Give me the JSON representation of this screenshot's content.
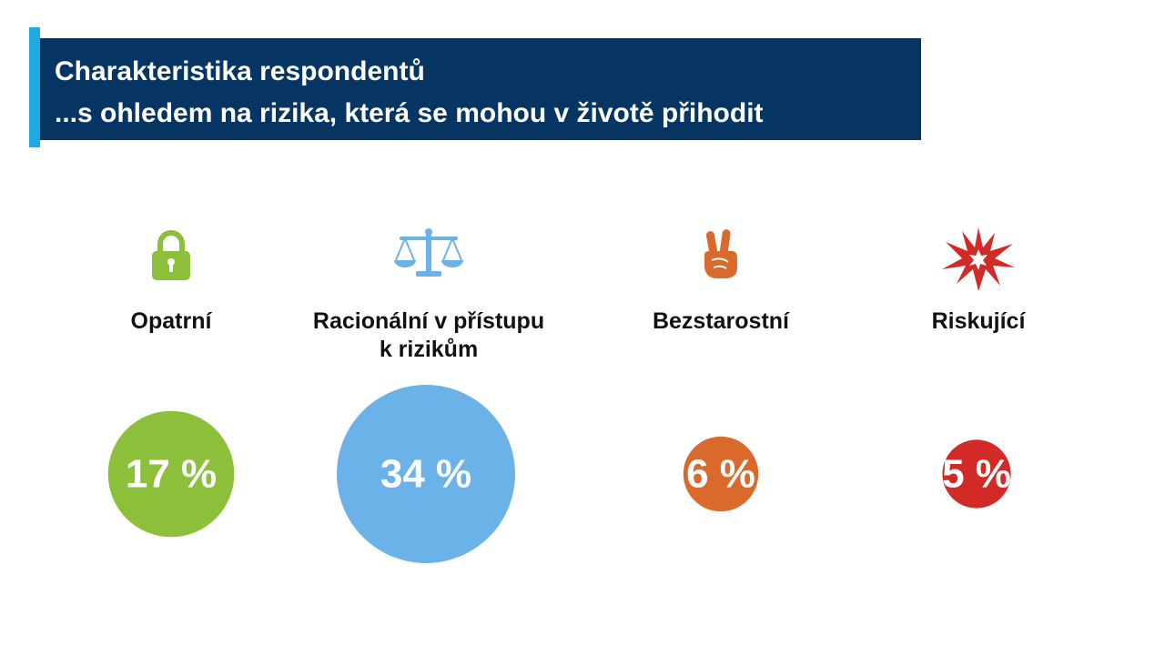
{
  "title": {
    "line1": "Charakteristika respondentů",
    "line2": "...s ohledem na rizika, která se mohou v životě přihodit"
  },
  "chart_data": {
    "type": "bubble",
    "unit": "%",
    "categories": [
      {
        "label_lines": [
          "Opatrní"
        ],
        "value": 17,
        "display": "17 %",
        "color": "#8cbf3a",
        "icon": "padlock-icon"
      },
      {
        "label_lines": [
          "Racionální v přístupu",
          "k rizikům"
        ],
        "value": 34,
        "display": "34 %",
        "color": "#6ab2e7",
        "icon": "scales-icon"
      },
      {
        "label_lines": [
          "Bezstarostní"
        ],
        "value": 6,
        "display": "6 %",
        "color": "#d96a2b",
        "icon": "peace-hand-icon"
      },
      {
        "label_lines": [
          "Riskující"
        ],
        "value": 5,
        "display": "5 %",
        "color": "#d22b27",
        "icon": "explosion-icon"
      }
    ]
  }
}
